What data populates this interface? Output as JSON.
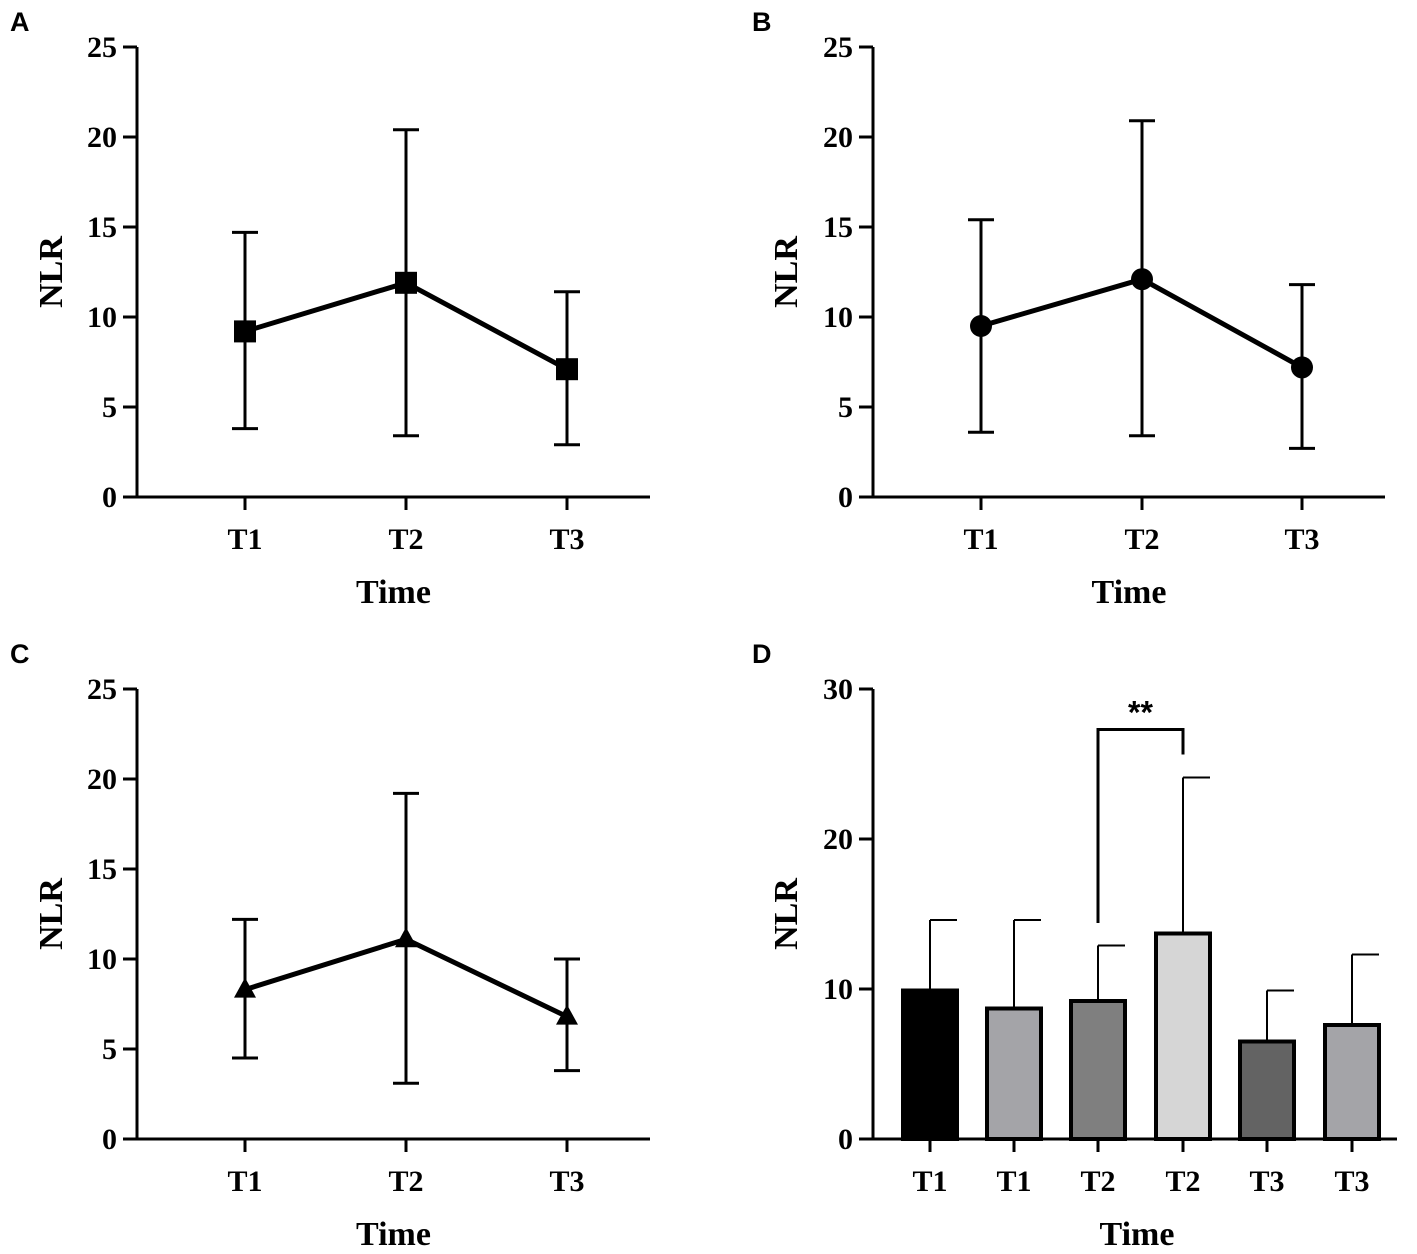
{
  "chart_data": [
    {
      "panel": "A",
      "type": "line",
      "marker": "square",
      "categories": [
        "T1",
        "T2",
        "T3"
      ],
      "values": [
        9.2,
        11.9,
        7.1
      ],
      "error_upper": [
        14.7,
        20.4,
        11.4
      ],
      "error_lower": [
        3.8,
        3.4,
        2.9
      ],
      "xlabel": "Time",
      "ylabel": "NLR",
      "ylim": [
        0,
        25
      ],
      "yticks": [
        0,
        5,
        10,
        15,
        20,
        25
      ],
      "grid": false
    },
    {
      "panel": "B",
      "type": "line",
      "marker": "circle",
      "categories": [
        "T1",
        "T2",
        "T3"
      ],
      "values": [
        9.5,
        12.1,
        7.2
      ],
      "error_upper": [
        15.4,
        20.9,
        11.8
      ],
      "error_lower": [
        3.6,
        3.4,
        2.7
      ],
      "xlabel": "Time",
      "ylabel": "NLR",
      "ylim": [
        0,
        25
      ],
      "yticks": [
        0,
        5,
        10,
        15,
        20,
        25
      ],
      "grid": false
    },
    {
      "panel": "C",
      "type": "line",
      "marker": "triangle",
      "categories": [
        "T1",
        "T2",
        "T3"
      ],
      "values": [
        8.3,
        11.1,
        6.8
      ],
      "error_upper": [
        12.2,
        19.2,
        10.0
      ],
      "error_lower": [
        4.5,
        3.1,
        3.8
      ],
      "xlabel": "Time",
      "ylabel": "NLR",
      "ylim": [
        0,
        25
      ],
      "yticks": [
        0,
        5,
        10,
        15,
        20,
        25
      ],
      "grid": false
    },
    {
      "panel": "D",
      "type": "bar",
      "categories": [
        "T1",
        "T1",
        "T2",
        "T2",
        "T3",
        "T3"
      ],
      "values": [
        9.9,
        8.7,
        9.2,
        13.7,
        6.5,
        7.6
      ],
      "error_upper": [
        14.6,
        14.6,
        12.9,
        24.1,
        9.9,
        12.3
      ],
      "bar_colors": [
        "#000000",
        "#a4a4a8",
        "#7f7f7f",
        "#d6d6d6",
        "#636363",
        "#a4a4a8"
      ],
      "xlabel": "Time",
      "ylabel": "NLR",
      "ylim": [
        0,
        30
      ],
      "yticks": [
        0,
        10,
        20,
        30
      ],
      "grid": false,
      "annotations": [
        {
          "text": "**",
          "from_index": 2,
          "to_index": 3,
          "at_value": 27.3
        }
      ]
    }
  ]
}
